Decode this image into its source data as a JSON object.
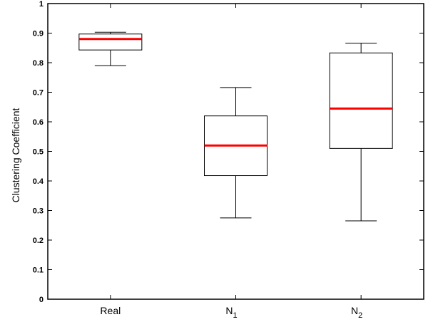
{
  "chart_data": {
    "type": "box",
    "ylabel": "Clustering Coefficient",
    "xlabel": "",
    "title": "",
    "ylim": [
      0,
      1
    ],
    "yticks": [
      "0",
      "0.1",
      "0.2",
      "0.3",
      "0.4",
      "0.5",
      "0.6",
      "0.7",
      "0.8",
      "0.9",
      "1"
    ],
    "categories": [
      {
        "base": "Real",
        "sub": ""
      },
      {
        "base": "N",
        "sub": "1"
      },
      {
        "base": "N",
        "sub": "2"
      }
    ],
    "boxes": [
      {
        "whisker_low": 0.79,
        "q1": 0.843,
        "median": 0.88,
        "q3": 0.897,
        "whisker_high": 0.903
      },
      {
        "whisker_low": 0.275,
        "q1": 0.418,
        "median": 0.52,
        "q3": 0.62,
        "whisker_high": 0.716
      },
      {
        "whisker_low": 0.265,
        "q1": 0.51,
        "median": 0.645,
        "q3": 0.833,
        "whisker_high": 0.866
      }
    ],
    "grid": false,
    "median_color": "#ff0000",
    "box_color": "#000000"
  }
}
